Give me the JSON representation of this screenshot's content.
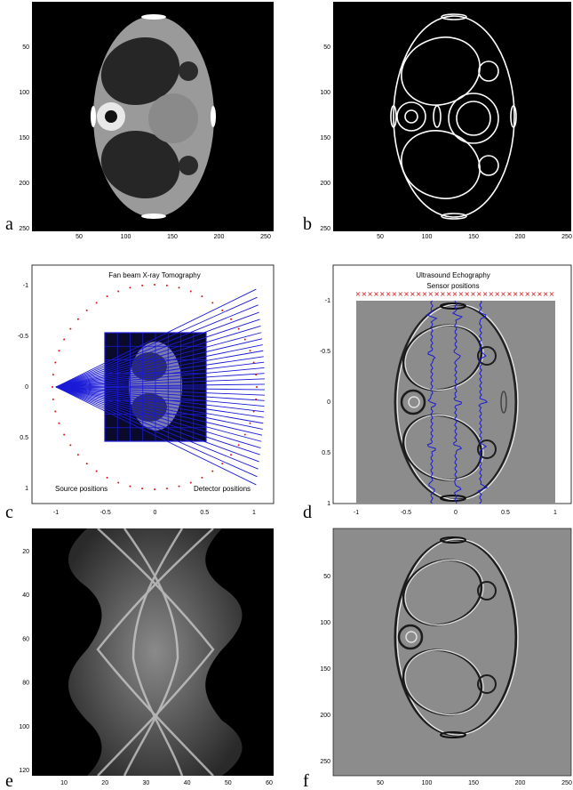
{
  "panels": {
    "a": {
      "label": "a",
      "x_ticks": [
        "50",
        "100",
        "150",
        "200",
        "250"
      ],
      "y_ticks": [
        "50",
        "100",
        "150",
        "200",
        "250"
      ]
    },
    "b": {
      "label": "b",
      "x_ticks": [
        "50",
        "100",
        "150",
        "200",
        "250"
      ],
      "y_ticks": [
        "50",
        "100",
        "150",
        "200",
        "250"
      ]
    },
    "c": {
      "label": "c",
      "title": "Fan beam X-ray Tomography",
      "source_caption": "Source positions",
      "detector_caption": "Detector positions",
      "x_ticks": [
        "-1",
        "-0.5",
        "0",
        "0.5",
        "1"
      ],
      "y_ticks": [
        "-1",
        "-0.5",
        "0",
        "0.5",
        "1"
      ]
    },
    "d": {
      "label": "d",
      "title": "Ultrasound Echography",
      "sensor_caption": "Sensor positions",
      "x_ticks": [
        "-1",
        "-0.5",
        "0",
        "0.5",
        "1"
      ],
      "y_ticks": [
        "-1",
        "-0.5",
        "0",
        "0.5",
        "1"
      ]
    },
    "e": {
      "label": "e",
      "x_ticks": [
        "10",
        "20",
        "30",
        "40",
        "50",
        "60"
      ],
      "y_ticks": [
        "20",
        "40",
        "60",
        "80",
        "100",
        "120"
      ]
    },
    "f": {
      "label": "f",
      "x_ticks": [
        "50",
        "100",
        "150",
        "200",
        "250"
      ],
      "y_ticks": [
        "50",
        "100",
        "150",
        "200",
        "250"
      ]
    }
  },
  "colors": {
    "ray": "#1a1ad6",
    "source_dot": "#dd1111",
    "sensor_x": "#dd1111",
    "waveform": "#1a1ad6"
  }
}
